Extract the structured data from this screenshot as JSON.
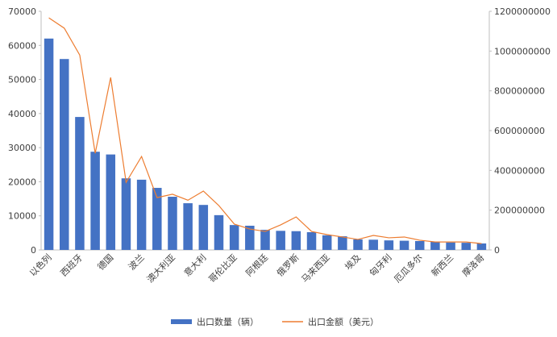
{
  "chart_data": {
    "type": "bar_line",
    "categories": [
      "以色列",
      null,
      "西班牙",
      null,
      "德国",
      null,
      "波兰",
      null,
      "澳大利亚",
      null,
      "意大利",
      null,
      "哥伦比亚",
      null,
      "阿根廷",
      null,
      "俄罗斯",
      null,
      "马来西亚",
      null,
      "埃及",
      null,
      "匈牙利",
      null,
      "厄瓜多尔",
      null,
      "新西兰",
      null,
      "摩洛哥"
    ],
    "series": [
      {
        "name": "出口数量（辆）",
        "color": "#4472c4",
        "values": [
          62000,
          56000,
          39000,
          28800,
          28000,
          21000,
          20600,
          18200,
          15600,
          13700,
          13200,
          10200,
          7300,
          7100,
          5900,
          5600,
          5500,
          5200,
          4300,
          4000,
          3100,
          3000,
          2800,
          2700,
          2600,
          2400,
          2200,
          2100,
          1900
        ]
      },
      {
        "name": "出口金额（美元）",
        "color": "#ed7d31",
        "axis": "y2",
        "values": [
          1167000000,
          1115000000,
          980000000,
          486000000,
          867000000,
          340000000,
          470000000,
          263000000,
          280000000,
          250000000,
          296000000,
          223000000,
          130000000,
          105000000,
          93000000,
          126000000,
          166000000,
          93000000,
          77000000,
          65000000,
          53000000,
          73000000,
          61000000,
          65000000,
          49000000,
          40000000,
          40000000,
          40000000,
          32000000
        ]
      }
    ],
    "ylim": [
      0,
      70000
    ],
    "yticks": [
      0,
      10000,
      20000,
      30000,
      40000,
      50000,
      60000,
      70000
    ],
    "y2lim": [
      0,
      1200000000
    ],
    "y2ticks": [
      0,
      200000000,
      400000000,
      600000000,
      800000000,
      1000000000,
      1200000000
    ],
    "legend": "bottom"
  }
}
